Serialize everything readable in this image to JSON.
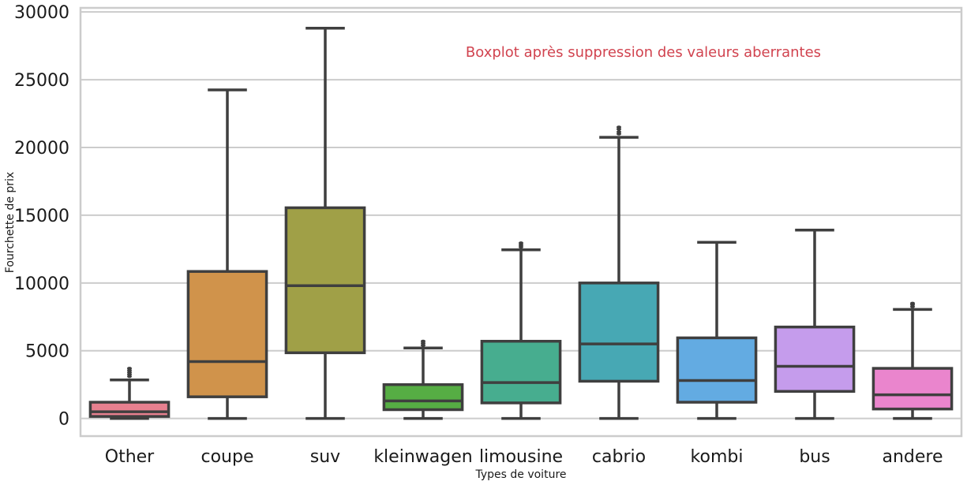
{
  "chart_data": {
    "type": "box",
    "xlabel": "Types de voiture",
    "ylabel": "Fourchette de prix",
    "annotation": "Boxplot après suppression des valeurs aberrantes",
    "ylim": [
      -1300,
      30300
    ],
    "yticks": [
      0,
      5000,
      10000,
      15000,
      20000,
      25000,
      30000
    ],
    "grid": "horizontal",
    "categories": [
      "Other",
      "coupe",
      "suv",
      "kleinwagen",
      "limousine",
      "cabrio",
      "kombi",
      "bus",
      "andere"
    ],
    "boxes": [
      {
        "category": "Other",
        "whisker_low": 0,
        "q1": 150,
        "median": 500,
        "q3": 1200,
        "whisker_high": 2850,
        "outliers": [
          3100,
          3250,
          3400,
          3550,
          3700
        ],
        "color": "#e8808f"
      },
      {
        "category": "coupe",
        "whisker_low": 0,
        "q1": 1600,
        "median": 4200,
        "q3": 10850,
        "whisker_high": 24250,
        "outliers": [],
        "color": "#d0934b"
      },
      {
        "category": "suv",
        "whisker_low": 0,
        "q1": 4850,
        "median": 9800,
        "q3": 15550,
        "whisker_high": 28800,
        "outliers": [],
        "color": "#a0a047"
      },
      {
        "category": "kleinwagen",
        "whisker_low": 0,
        "q1": 650,
        "median": 1300,
        "q3": 2500,
        "whisker_high": 5200,
        "outliers": [
          5400,
          5550,
          5700
        ],
        "color": "#56ad44"
      },
      {
        "category": "limousine",
        "whisker_low": 0,
        "q1": 1150,
        "median": 2650,
        "q3": 5700,
        "whisker_high": 12450,
        "outliers": [
          12650,
          12800,
          12950
        ],
        "color": "#47ad8f"
      },
      {
        "category": "cabrio",
        "whisker_low": 0,
        "q1": 2750,
        "median": 5500,
        "q3": 10000,
        "whisker_high": 20750,
        "outliers": [
          21000,
          21150,
          21350,
          21500
        ],
        "color": "#47a8b4"
      },
      {
        "category": "kombi",
        "whisker_low": 0,
        "q1": 1200,
        "median": 2800,
        "q3": 5950,
        "whisker_high": 13000,
        "outliers": [],
        "color": "#63abe2"
      },
      {
        "category": "bus",
        "whisker_low": 0,
        "q1": 2000,
        "median": 3850,
        "q3": 6750,
        "whisker_high": 13900,
        "outliers": [],
        "color": "#c59cec"
      },
      {
        "category": "andere",
        "whisker_low": 0,
        "q1": 700,
        "median": 1750,
        "q3": 3700,
        "whisker_high": 8050,
        "outliers": [
          8250,
          8400,
          8500
        ],
        "color": "#ea85cd"
      }
    ]
  }
}
